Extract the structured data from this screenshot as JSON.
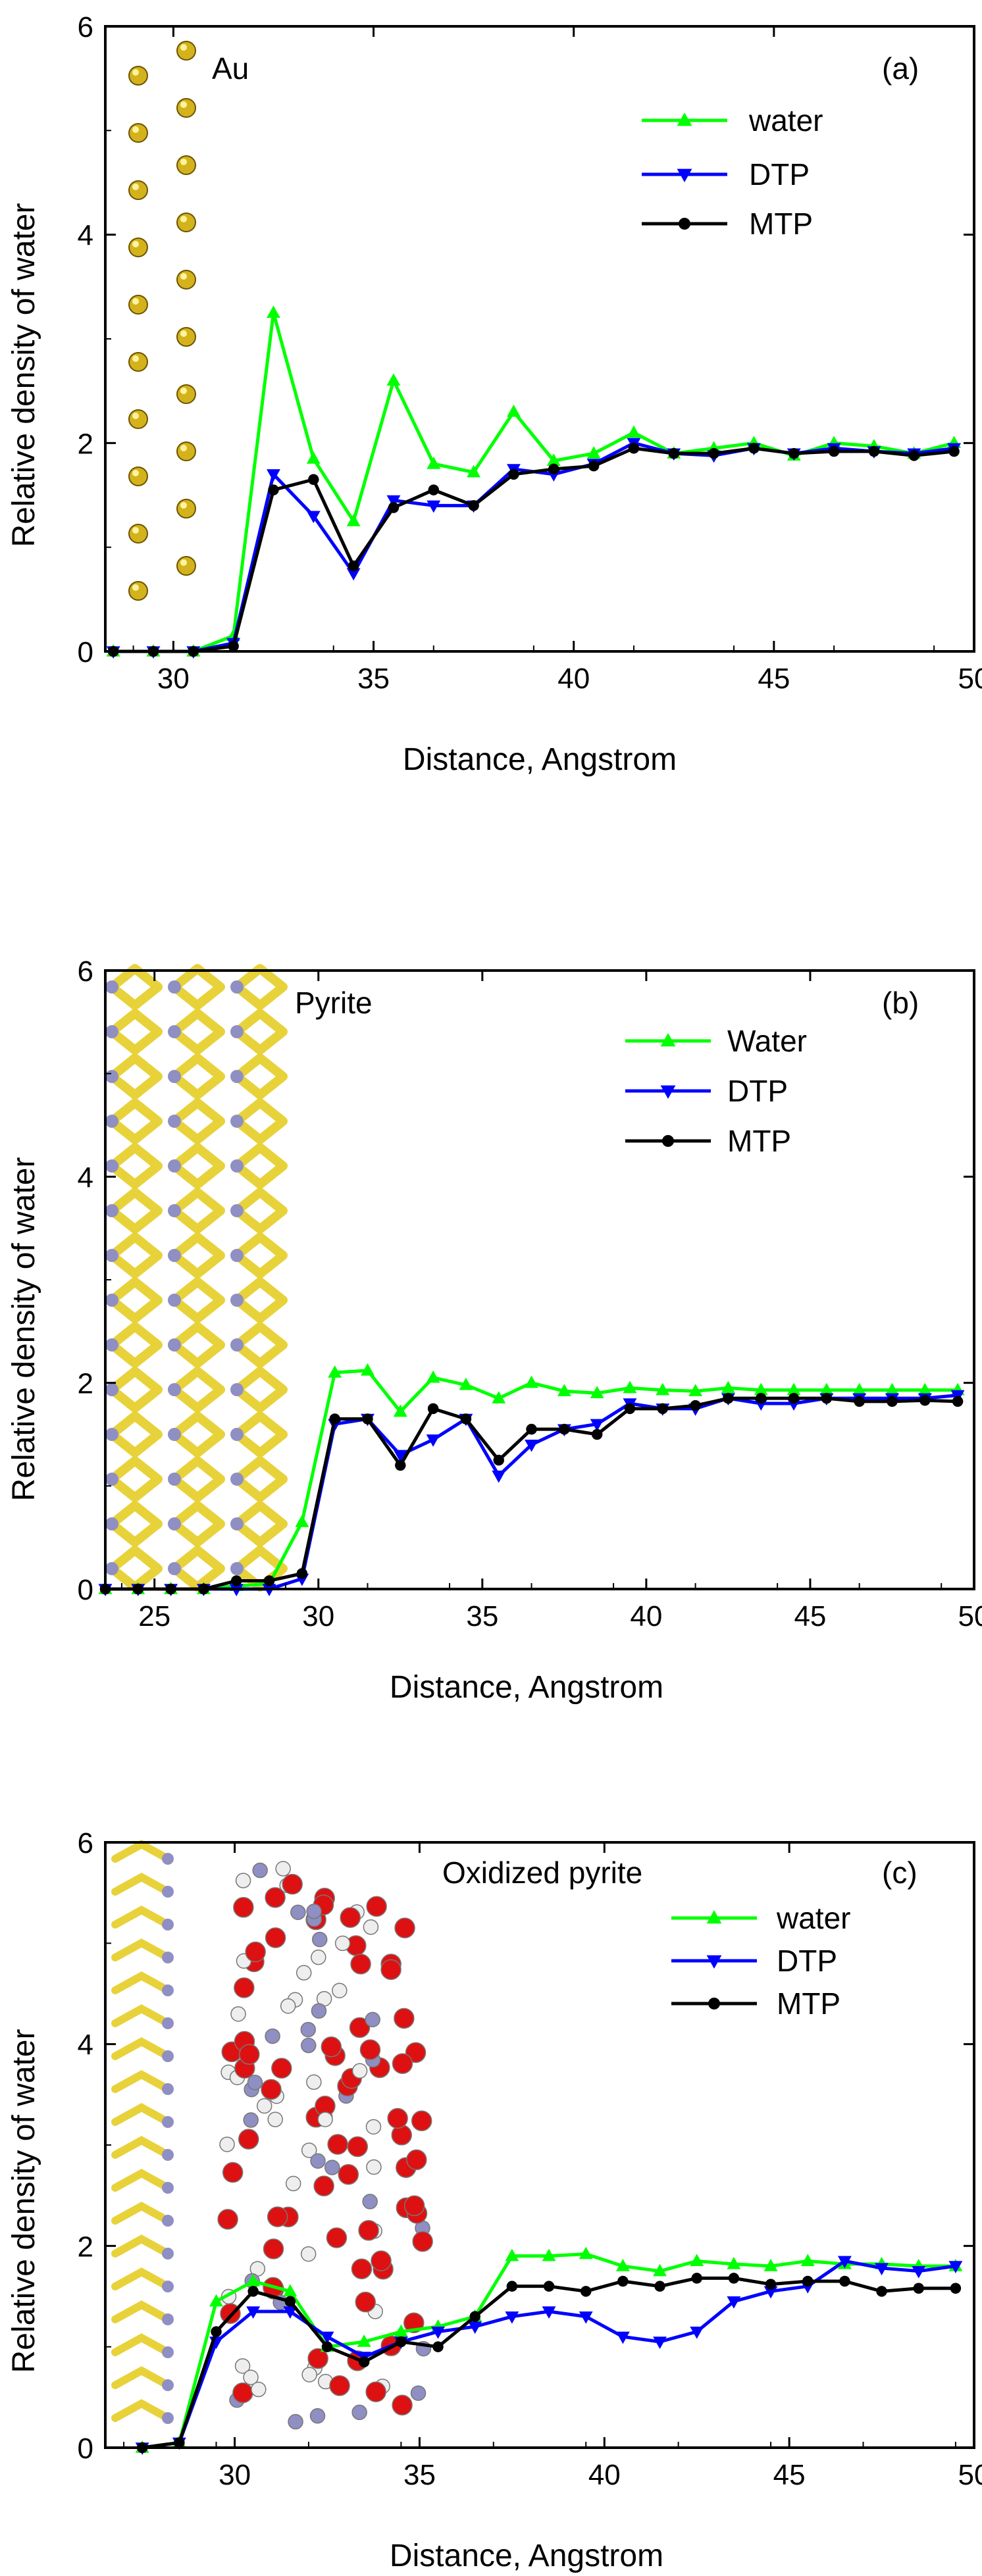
{
  "figure": {
    "xlabel": "Distance, Angstrom",
    "ylabel": "Relative density of water"
  },
  "colors": {
    "water": "#00ff00",
    "dtp": "#0000ff",
    "mtp": "#000000",
    "gold": "#d4b21c",
    "sulfur": "#e8d23a",
    "iron": "#8f8fc4",
    "oxygen": "#dd1111",
    "hydrogen": "#eeeeee"
  },
  "chart_data": [
    {
      "type": "line",
      "panel": "(a)",
      "surface": "Au",
      "title": "",
      "xlabel": "Distance, Angstrom",
      "ylabel": "Relative density of water",
      "xlim": [
        28.3,
        50
      ],
      "ylim": [
        0,
        6
      ],
      "xticks": [
        30,
        35,
        40,
        45,
        50
      ],
      "yticks": [
        0,
        2,
        4,
        6
      ],
      "legend_position": "top-right",
      "series": [
        {
          "name": "water",
          "key": "water",
          "marker": "triangle-up",
          "x": [
            28.5,
            29.5,
            30.5,
            31.5,
            32.5,
            33.5,
            34.5,
            35.5,
            36.5,
            37.5,
            38.5,
            39.5,
            40.5,
            41.5,
            42.5,
            43.5,
            44.5,
            45.5,
            46.5,
            47.5,
            48.5,
            49.5
          ],
          "y": [
            0,
            0,
            0,
            0.15,
            3.25,
            1.85,
            1.25,
            2.6,
            1.8,
            1.72,
            2.3,
            1.83,
            1.9,
            2.1,
            1.9,
            1.95,
            2.0,
            1.88,
            2.0,
            1.97,
            1.9,
            2.0
          ]
        },
        {
          "name": "DTP",
          "key": "dtp",
          "marker": "triangle-down",
          "x": [
            28.5,
            29.5,
            30.5,
            31.5,
            32.5,
            33.5,
            34.5,
            35.5,
            36.5,
            37.5,
            38.5,
            39.5,
            40.5,
            41.5,
            42.5,
            43.5,
            44.5,
            45.5,
            46.5,
            47.5,
            48.5,
            49.5
          ],
          "y": [
            0,
            0,
            0,
            0.08,
            1.7,
            1.3,
            0.75,
            1.45,
            1.4,
            1.4,
            1.75,
            1.7,
            1.8,
            2.0,
            1.9,
            1.88,
            1.95,
            1.9,
            1.95,
            1.92,
            1.9,
            1.95
          ]
        },
        {
          "name": "MTP",
          "key": "mtp",
          "marker": "circle",
          "x": [
            28.5,
            29.5,
            30.5,
            31.5,
            32.5,
            33.5,
            34.5,
            35.5,
            36.5,
            37.5,
            38.5,
            39.5,
            40.5,
            41.5,
            42.5,
            43.5,
            44.5,
            45.5,
            46.5,
            47.5,
            48.5,
            49.5
          ],
          "y": [
            0,
            0,
            0,
            0.05,
            1.55,
            1.65,
            0.82,
            1.38,
            1.55,
            1.4,
            1.7,
            1.75,
            1.78,
            1.95,
            1.9,
            1.9,
            1.95,
            1.9,
            1.92,
            1.92,
            1.88,
            1.92
          ]
        }
      ]
    },
    {
      "type": "line",
      "panel": "(b)",
      "surface": "Pyrite",
      "title": "",
      "xlabel": "Distance, Angstrom",
      "ylabel": "Relative density of water",
      "xlim": [
        23.5,
        50
      ],
      "ylim": [
        0,
        6
      ],
      "xticks": [
        25,
        30,
        35,
        40,
        45,
        50
      ],
      "yticks": [
        0,
        2,
        4,
        6
      ],
      "legend_position": "top-right",
      "series": [
        {
          "name": "Water",
          "key": "water",
          "marker": "triangle-up",
          "x": [
            23.5,
            24.5,
            25.5,
            26.5,
            27.5,
            28.5,
            29.5,
            30.5,
            31.5,
            32.5,
            33.5,
            34.5,
            35.5,
            36.5,
            37.5,
            38.5,
            39.5,
            40.5,
            41.5,
            42.5,
            43.5,
            44.5,
            45.5,
            46.5,
            47.5,
            48.5,
            49.5
          ],
          "y": [
            0,
            0,
            0,
            0,
            0.03,
            0.05,
            0.65,
            2.1,
            2.12,
            1.72,
            2.05,
            1.98,
            1.85,
            2.0,
            1.92,
            1.9,
            1.95,
            1.93,
            1.92,
            1.95,
            1.93,
            1.93,
            1.93,
            1.93,
            1.93,
            1.93,
            1.93
          ]
        },
        {
          "name": "DTP",
          "key": "dtp",
          "marker": "triangle-down",
          "x": [
            23.5,
            24.5,
            25.5,
            26.5,
            27.5,
            28.5,
            29.5,
            30.5,
            31.5,
            32.5,
            33.5,
            34.5,
            35.5,
            36.5,
            37.5,
            38.5,
            39.5,
            40.5,
            41.5,
            42.5,
            43.5,
            44.5,
            45.5,
            46.5,
            47.5,
            48.5,
            49.5
          ],
          "y": [
            0,
            0,
            0,
            0,
            0,
            0,
            0.1,
            1.6,
            1.65,
            1.3,
            1.45,
            1.65,
            1.1,
            1.4,
            1.55,
            1.6,
            1.8,
            1.75,
            1.75,
            1.85,
            1.8,
            1.8,
            1.85,
            1.85,
            1.85,
            1.85,
            1.88
          ]
        },
        {
          "name": "MTP",
          "key": "mtp",
          "marker": "circle",
          "x": [
            23.5,
            24.5,
            25.5,
            26.5,
            27.5,
            28.5,
            29.5,
            30.5,
            31.5,
            32.5,
            33.5,
            34.5,
            35.5,
            36.5,
            37.5,
            38.5,
            39.5,
            40.5,
            41.5,
            42.5,
            43.5,
            44.5,
            45.5,
            46.5,
            47.5,
            48.5,
            49.5
          ],
          "y": [
            0,
            0,
            0,
            0,
            0.08,
            0.08,
            0.15,
            1.65,
            1.65,
            1.2,
            1.75,
            1.65,
            1.25,
            1.55,
            1.55,
            1.5,
            1.75,
            1.75,
            1.78,
            1.85,
            1.85,
            1.85,
            1.85,
            1.82,
            1.82,
            1.83,
            1.82
          ]
        }
      ]
    },
    {
      "type": "line",
      "panel": "(c)",
      "surface": "Oxidized pyrite",
      "title": "",
      "xlabel": "Distance, Angstrom",
      "ylabel": "Relative density of water",
      "xlim": [
        26.5,
        50
      ],
      "ylim": [
        0,
        6
      ],
      "xticks": [
        30,
        35,
        40,
        45,
        50
      ],
      "yticks": [
        0,
        2,
        4,
        6
      ],
      "legend_position": "top-right",
      "series": [
        {
          "name": "water",
          "key": "water",
          "marker": "triangle-up",
          "x": [
            27.5,
            28.5,
            29.5,
            30.5,
            31.5,
            32.5,
            33.5,
            34.5,
            35.5,
            36.5,
            37.5,
            38.5,
            39.5,
            40.5,
            41.5,
            42.5,
            43.5,
            44.5,
            45.5,
            46.5,
            47.5,
            48.5,
            49.5
          ],
          "y": [
            0,
            0.05,
            1.45,
            1.65,
            1.55,
            1.0,
            1.05,
            1.15,
            1.2,
            1.3,
            1.9,
            1.9,
            1.92,
            1.8,
            1.75,
            1.85,
            1.82,
            1.8,
            1.85,
            1.82,
            1.82,
            1.8,
            1.8
          ]
        },
        {
          "name": "DTP",
          "key": "dtp",
          "marker": "triangle-down",
          "x": [
            27.5,
            28.5,
            29.5,
            30.5,
            31.5,
            32.5,
            33.5,
            34.5,
            35.5,
            36.5,
            37.5,
            38.5,
            39.5,
            40.5,
            41.5,
            42.5,
            43.5,
            44.5,
            45.5,
            46.5,
            47.5,
            48.5,
            49.5
          ],
          "y": [
            0,
            0.05,
            1.05,
            1.35,
            1.35,
            1.1,
            0.9,
            1.05,
            1.15,
            1.2,
            1.3,
            1.35,
            1.3,
            1.1,
            1.05,
            1.15,
            1.45,
            1.55,
            1.6,
            1.85,
            1.78,
            1.75,
            1.8
          ]
        },
        {
          "name": "MTP",
          "key": "mtp",
          "marker": "circle",
          "x": [
            27.5,
            28.5,
            29.5,
            30.5,
            31.5,
            32.5,
            33.5,
            34.5,
            35.5,
            36.5,
            37.5,
            38.5,
            39.5,
            40.5,
            41.5,
            42.5,
            43.5,
            44.5,
            45.5,
            46.5,
            47.5,
            48.5,
            49.5
          ],
          "y": [
            0,
            0.05,
            1.15,
            1.55,
            1.45,
            1.0,
            0.85,
            1.05,
            1.0,
            1.3,
            1.6,
            1.6,
            1.55,
            1.65,
            1.6,
            1.68,
            1.68,
            1.62,
            1.65,
            1.65,
            1.55,
            1.58,
            1.58
          ]
        }
      ]
    }
  ]
}
